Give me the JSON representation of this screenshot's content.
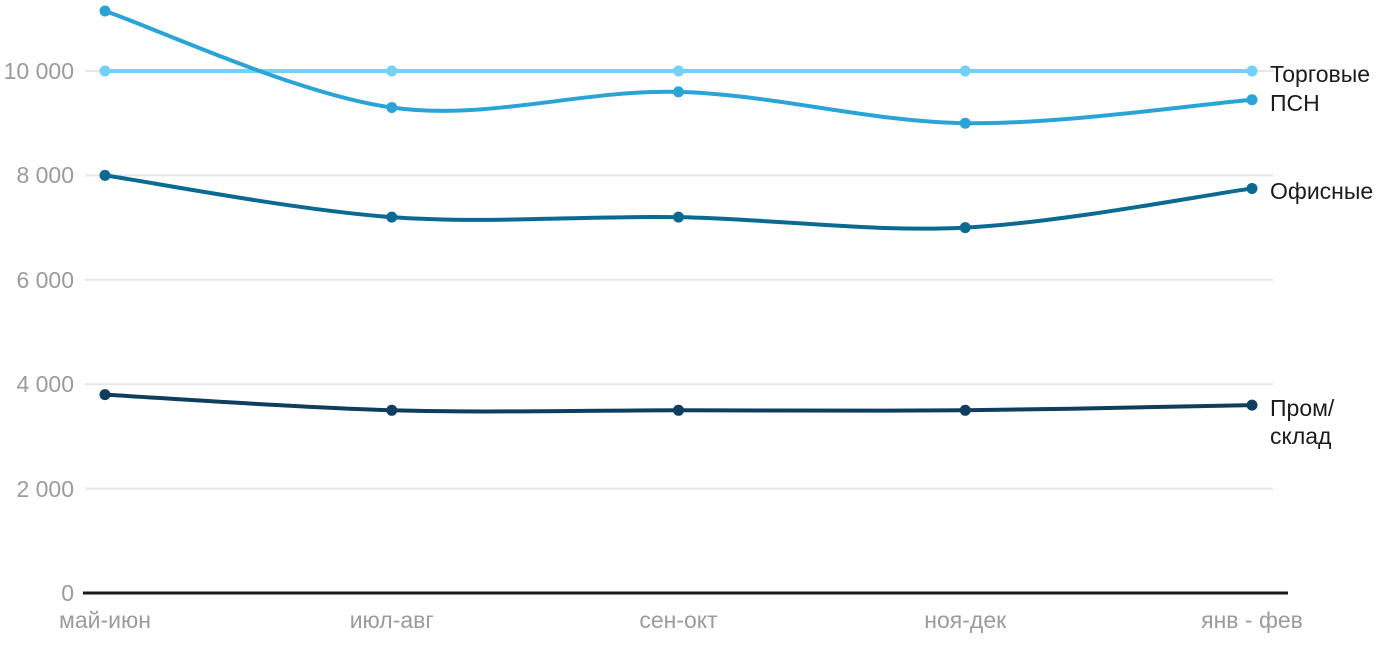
{
  "chart_data": {
    "type": "line",
    "title": "",
    "xlabel": "",
    "ylabel": "",
    "categories": [
      "май-июн",
      "июл-авг",
      "сен-окт",
      "ноя-дек",
      "янв - фев"
    ],
    "series": [
      {
        "name": "Торговые",
        "values": [
          10000,
          10000,
          10000,
          10000,
          10000
        ],
        "color": "#72D2F6"
      },
      {
        "name": "ПСН",
        "values": [
          11150,
          9300,
          9600,
          9000,
          9450
        ],
        "color": "#2AA4D6"
      },
      {
        "name": "Офисные",
        "values": [
          8000,
          7200,
          7200,
          7000,
          7750
        ],
        "color": "#0A6A92"
      },
      {
        "name": "Пром/склад",
        "values": [
          3800,
          3500,
          3500,
          3500,
          3600
        ],
        "color": "#0E3D5E"
      }
    ],
    "y_ticks": [
      0,
      2000,
      4000,
      6000,
      8000,
      10000
    ],
    "y_tick_labels": [
      "0",
      "2 000",
      "4 000",
      "6 000",
      "8 000",
      "10 000"
    ],
    "ylim": [
      0,
      11400
    ],
    "grid": "horizontal",
    "legend_position": "right-of-line-ends",
    "colors": {
      "gridline": "#E6E6E6",
      "axis_line": "#1A1A1A",
      "tick_text": "#9B9B9B",
      "legend_text": "#1C1C1C",
      "background": "#FFFFFF"
    }
  }
}
